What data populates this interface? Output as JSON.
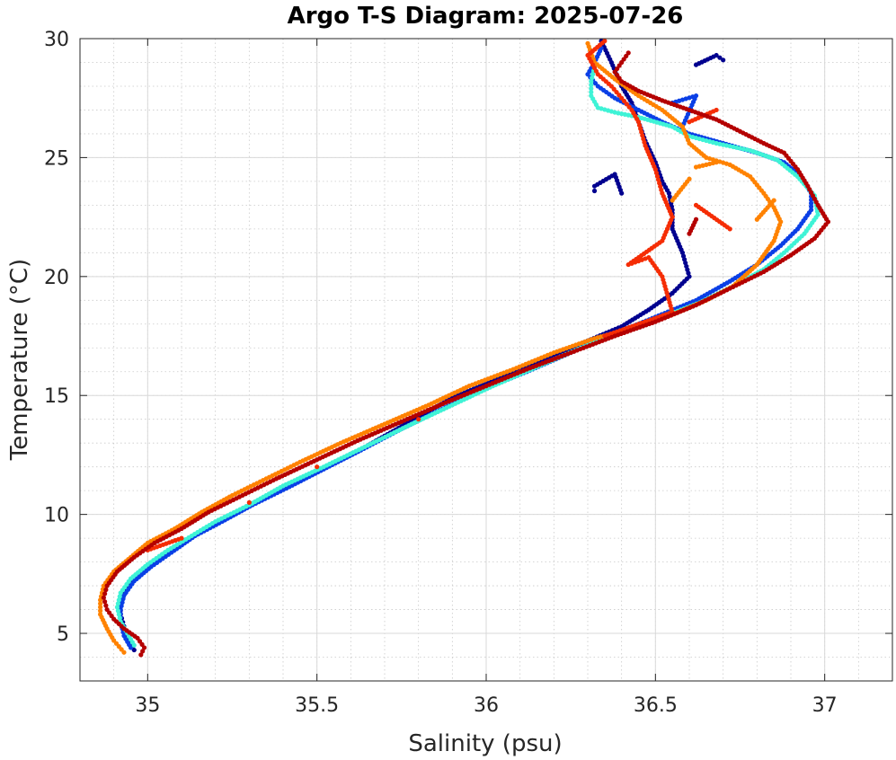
{
  "chart_data": {
    "type": "scatter",
    "title": "Argo T-S Diagram: 2025-07-26",
    "xlabel": "Salinity (psu)",
    "ylabel": "Temperature (°C)",
    "xlim": [
      34.8,
      37.2
    ],
    "ylim": [
      3,
      30
    ],
    "xticks": [
      35,
      35.5,
      36,
      36.5,
      37
    ],
    "xtick_labels": [
      "35",
      "35.5",
      "36",
      "36.5",
      "37"
    ],
    "yticks": [
      5,
      10,
      15,
      20,
      25,
      30
    ],
    "ytick_labels": [
      "5",
      "10",
      "15",
      "20",
      "25",
      "30"
    ],
    "grid": true,
    "minor_grid": true,
    "legend": "none",
    "series": [
      {
        "color": "#00008f",
        "points": [
          [
            34.96,
            4.3
          ],
          [
            34.94,
            4.8
          ],
          [
            34.93,
            5.3
          ],
          [
            34.92,
            5.8
          ],
          [
            34.92,
            6.3
          ],
          [
            34.94,
            6.9
          ],
          [
            34.97,
            7.4
          ],
          [
            35.02,
            8.0
          ],
          [
            35.08,
            8.6
          ],
          [
            35.15,
            9.2
          ],
          [
            35.22,
            9.8
          ],
          [
            35.3,
            10.4
          ],
          [
            35.4,
            11.1
          ],
          [
            35.5,
            11.8
          ],
          [
            35.6,
            12.5
          ],
          [
            35.7,
            13.3
          ],
          [
            35.8,
            14.1
          ],
          [
            35.9,
            14.9
          ],
          [
            36.0,
            15.5
          ],
          [
            36.1,
            16.1
          ],
          [
            36.2,
            16.7
          ],
          [
            36.3,
            17.3
          ],
          [
            36.4,
            17.9
          ],
          [
            36.48,
            18.6
          ],
          [
            36.55,
            19.3
          ],
          [
            36.6,
            20.0
          ],
          [
            36.58,
            21.0
          ],
          [
            36.55,
            22.0
          ],
          [
            36.55,
            22.8
          ],
          [
            36.54,
            23.5
          ],
          [
            36.52,
            24.0
          ],
          [
            36.5,
            24.8
          ],
          [
            36.47,
            25.7
          ],
          [
            36.45,
            26.5
          ],
          [
            36.43,
            27.3
          ],
          [
            36.4,
            28.0
          ],
          [
            36.37,
            29.0
          ],
          [
            36.34,
            29.9
          ],
          [
            36.32,
            23.6
          ],
          [
            36.32,
            23.8
          ],
          [
            36.38,
            24.3
          ],
          [
            36.4,
            23.5
          ],
          [
            36.62,
            28.9
          ],
          [
            36.68,
            29.3
          ],
          [
            36.7,
            29.1
          ]
        ]
      },
      {
        "color": "#0a3fe6",
        "points": [
          [
            34.95,
            4.4
          ],
          [
            34.93,
            4.9
          ],
          [
            34.92,
            5.5
          ],
          [
            34.92,
            6.0
          ],
          [
            34.93,
            6.6
          ],
          [
            34.96,
            7.2
          ],
          [
            35.01,
            7.8
          ],
          [
            35.07,
            8.4
          ],
          [
            35.14,
            9.1
          ],
          [
            35.22,
            9.7
          ],
          [
            35.31,
            10.4
          ],
          [
            35.41,
            11.1
          ],
          [
            35.52,
            11.9
          ],
          [
            35.63,
            12.7
          ],
          [
            35.75,
            13.6
          ],
          [
            35.88,
            14.5
          ],
          [
            36.0,
            15.3
          ],
          [
            36.12,
            16.0
          ],
          [
            36.25,
            16.8
          ],
          [
            36.38,
            17.6
          ],
          [
            36.5,
            18.3
          ],
          [
            36.62,
            19.0
          ],
          [
            36.72,
            19.8
          ],
          [
            36.8,
            20.5
          ],
          [
            36.87,
            21.3
          ],
          [
            36.92,
            22.0
          ],
          [
            36.96,
            22.8
          ],
          [
            36.96,
            23.5
          ],
          [
            36.93,
            24.2
          ],
          [
            36.88,
            24.8
          ],
          [
            36.8,
            25.2
          ],
          [
            36.7,
            25.6
          ],
          [
            36.6,
            26.0
          ],
          [
            36.52,
            26.5
          ],
          [
            36.45,
            27.0
          ],
          [
            36.38,
            27.5
          ],
          [
            36.33,
            28.0
          ],
          [
            36.3,
            28.5
          ],
          [
            36.32,
            29.0
          ],
          [
            36.34,
            29.6
          ],
          [
            36.55,
            27.3
          ],
          [
            36.62,
            27.6
          ],
          [
            36.58,
            26.3
          ]
        ]
      },
      {
        "color": "#3ff3d6",
        "points": [
          [
            34.96,
            4.5
          ],
          [
            34.94,
            5.0
          ],
          [
            34.92,
            5.5
          ],
          [
            34.91,
            6.1
          ],
          [
            34.92,
            6.7
          ],
          [
            34.95,
            7.3
          ],
          [
            35.0,
            7.9
          ],
          [
            35.06,
            8.5
          ],
          [
            35.13,
            9.1
          ],
          [
            35.2,
            9.7
          ],
          [
            35.3,
            10.4
          ],
          [
            35.4,
            11.2
          ],
          [
            35.52,
            12.0
          ],
          [
            35.65,
            12.9
          ],
          [
            35.78,
            13.8
          ],
          [
            35.9,
            14.6
          ],
          [
            36.02,
            15.4
          ],
          [
            36.15,
            16.2
          ],
          [
            36.28,
            17.0
          ],
          [
            36.4,
            17.7
          ],
          [
            36.52,
            18.3
          ],
          [
            36.63,
            18.9
          ],
          [
            36.73,
            19.6
          ],
          [
            36.82,
            20.3
          ],
          [
            36.88,
            21.0
          ],
          [
            36.94,
            21.8
          ],
          [
            36.98,
            22.6
          ],
          [
            36.97,
            23.4
          ],
          [
            36.92,
            24.2
          ],
          [
            36.86,
            24.9
          ],
          [
            36.78,
            25.3
          ],
          [
            36.68,
            25.6
          ],
          [
            36.6,
            25.9
          ],
          [
            36.55,
            26.3
          ],
          [
            36.45,
            26.7
          ],
          [
            36.38,
            26.9
          ],
          [
            36.33,
            27.1
          ],
          [
            36.31,
            27.6
          ],
          [
            36.31,
            28.2
          ],
          [
            36.32,
            28.8
          ]
        ]
      },
      {
        "color": "#ff8200",
        "points": [
          [
            34.93,
            4.2
          ],
          [
            34.9,
            4.7
          ],
          [
            34.88,
            5.2
          ],
          [
            34.86,
            5.8
          ],
          [
            34.86,
            6.4
          ],
          [
            34.87,
            7.0
          ],
          [
            34.9,
            7.6
          ],
          [
            34.95,
            8.2
          ],
          [
            35.0,
            8.8
          ],
          [
            35.08,
            9.4
          ],
          [
            35.16,
            10.1
          ],
          [
            35.25,
            10.8
          ],
          [
            35.35,
            11.5
          ],
          [
            35.45,
            12.2
          ],
          [
            35.57,
            13.0
          ],
          [
            35.7,
            13.8
          ],
          [
            35.83,
            14.6
          ],
          [
            35.95,
            15.4
          ],
          [
            36.08,
            16.1
          ],
          [
            36.2,
            16.8
          ],
          [
            36.32,
            17.4
          ],
          [
            36.45,
            17.9
          ],
          [
            36.55,
            18.4
          ],
          [
            36.65,
            19.0
          ],
          [
            36.73,
            19.6
          ],
          [
            36.8,
            20.5
          ],
          [
            36.85,
            21.5
          ],
          [
            36.87,
            22.3
          ],
          [
            36.85,
            22.9
          ],
          [
            36.82,
            23.5
          ],
          [
            36.78,
            24.2
          ],
          [
            36.72,
            24.7
          ],
          [
            36.65,
            25.0
          ],
          [
            36.6,
            25.6
          ],
          [
            36.58,
            26.3
          ],
          [
            36.52,
            27.0
          ],
          [
            36.45,
            27.6
          ],
          [
            36.38,
            28.3
          ],
          [
            36.32,
            29.0
          ],
          [
            36.3,
            29.8
          ],
          [
            36.62,
            24.6
          ],
          [
            36.68,
            24.8
          ],
          [
            36.55,
            23.2
          ],
          [
            36.6,
            24.1
          ],
          [
            36.85,
            23.2
          ],
          [
            36.8,
            22.4
          ]
        ]
      },
      {
        "color": "#f52d05",
        "points": [
          [
            35.0,
            8.5
          ],
          [
            35.1,
            9.0
          ],
          [
            35.3,
            10.5
          ],
          [
            35.5,
            12.0
          ],
          [
            35.8,
            14.0
          ],
          [
            36.1,
            16.0
          ],
          [
            36.35,
            17.5
          ],
          [
            36.45,
            18.0
          ],
          [
            36.55,
            18.5
          ],
          [
            36.52,
            20.0
          ],
          [
            36.48,
            20.8
          ],
          [
            36.42,
            20.5
          ],
          [
            36.52,
            21.5
          ],
          [
            36.55,
            22.5
          ],
          [
            36.52,
            23.5
          ],
          [
            36.5,
            24.5
          ],
          [
            36.47,
            25.5
          ],
          [
            36.45,
            26.5
          ],
          [
            36.43,
            27.0
          ],
          [
            36.4,
            27.5
          ],
          [
            36.37,
            28.0
          ],
          [
            36.33,
            28.5
          ],
          [
            36.3,
            29.3
          ],
          [
            36.35,
            29.9
          ],
          [
            36.6,
            26.5
          ],
          [
            36.68,
            27.0
          ],
          [
            36.62,
            23.0
          ],
          [
            36.72,
            22.0
          ]
        ]
      },
      {
        "color": "#b40000",
        "points": [
          [
            34.98,
            4.1
          ],
          [
            34.99,
            4.4
          ],
          [
            34.97,
            4.8
          ],
          [
            34.93,
            5.2
          ],
          [
            34.9,
            5.6
          ],
          [
            34.88,
            6.0
          ],
          [
            34.87,
            6.5
          ],
          [
            34.88,
            7.0
          ],
          [
            34.91,
            7.6
          ],
          [
            34.96,
            8.2
          ],
          [
            35.02,
            8.8
          ],
          [
            35.1,
            9.4
          ],
          [
            35.18,
            10.1
          ],
          [
            35.28,
            10.8
          ],
          [
            35.38,
            11.5
          ],
          [
            35.5,
            12.3
          ],
          [
            35.62,
            13.1
          ],
          [
            35.75,
            13.9
          ],
          [
            35.88,
            14.7
          ],
          [
            36.0,
            15.4
          ],
          [
            36.12,
            16.1
          ],
          [
            36.25,
            16.8
          ],
          [
            36.38,
            17.5
          ],
          [
            36.5,
            18.1
          ],
          [
            36.62,
            18.8
          ],
          [
            36.72,
            19.5
          ],
          [
            36.82,
            20.2
          ],
          [
            36.9,
            20.9
          ],
          [
            36.97,
            21.6
          ],
          [
            37.01,
            22.3
          ],
          [
            36.98,
            23.0
          ],
          [
            36.95,
            23.8
          ],
          [
            36.92,
            24.5
          ],
          [
            36.88,
            25.2
          ],
          [
            36.82,
            25.6
          ],
          [
            36.75,
            26.1
          ],
          [
            36.68,
            26.6
          ],
          [
            36.6,
            27.0
          ],
          [
            36.52,
            27.4
          ],
          [
            36.45,
            27.8
          ],
          [
            36.4,
            28.2
          ],
          [
            36.38,
            28.6
          ],
          [
            36.4,
            29.0
          ],
          [
            36.42,
            29.4
          ],
          [
            36.6,
            21.8
          ],
          [
            36.62,
            22.4
          ]
        ]
      }
    ]
  }
}
